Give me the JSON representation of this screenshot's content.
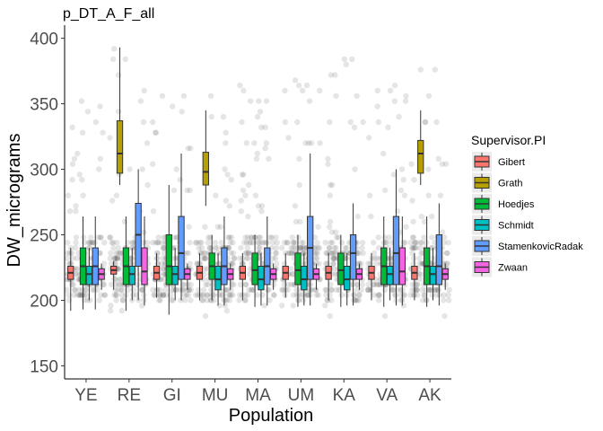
{
  "chart_data": {
    "type": "box",
    "title": "p_DT_A_F_all",
    "xlabel": "Population",
    "ylabel": "DW_micrograms",
    "ylim": [
      140,
      410
    ],
    "yticks": [
      150,
      200,
      250,
      300,
      350,
      400
    ],
    "categories": [
      "YE",
      "RE",
      "GI",
      "MU",
      "MA",
      "UM",
      "KA",
      "VA",
      "AK"
    ],
    "legend": {
      "title": "Supervisor.PI",
      "position": "right",
      "entries": [
        {
          "name": "Gibert",
          "color": "#F8766D"
        },
        {
          "name": "Grath",
          "color": "#B79F00"
        },
        {
          "name": "Hoedjes",
          "color": "#00BA38"
        },
        {
          "name": "Schmidt",
          "color": "#00BFC4"
        },
        {
          "name": "StamenkovicRadak",
          "color": "#619CFF"
        },
        {
          "name": "Zwaan",
          "color": "#F564E3"
        }
      ]
    },
    "series": [
      {
        "name": "Gibert",
        "color": "#F8766D",
        "boxes": [
          {
            "category": "YE",
            "min": 192,
            "q1": 216,
            "median": 221,
            "q3": 226,
            "max": 240
          },
          {
            "category": "RE",
            "min": 208,
            "q1": 220,
            "median": 223,
            "q3": 226,
            "max": 230
          },
          {
            "category": "GI",
            "min": 202,
            "q1": 216,
            "median": 221,
            "q3": 226,
            "max": 236
          },
          {
            "category": "MU",
            "min": 200,
            "q1": 216,
            "median": 221,
            "q3": 226,
            "max": 236
          },
          {
            "category": "MA",
            "min": 200,
            "q1": 216,
            "median": 221,
            "q3": 226,
            "max": 236
          },
          {
            "category": "UM",
            "min": 202,
            "q1": 216,
            "median": 221,
            "q3": 226,
            "max": 236
          },
          {
            "category": "KA",
            "min": 200,
            "q1": 216,
            "median": 221,
            "q3": 226,
            "max": 236
          },
          {
            "category": "VA",
            "min": 200,
            "q1": 216,
            "median": 221,
            "q3": 226,
            "max": 236
          },
          {
            "category": "AK",
            "min": 200,
            "q1": 216,
            "median": 221,
            "q3": 226,
            "max": 236
          }
        ]
      },
      {
        "name": "Grath",
        "color": "#B79F00",
        "boxes": [
          {
            "category": "RE",
            "min": 288,
            "q1": 297,
            "median": 312,
            "q3": 337,
            "max": 393
          },
          {
            "category": "MU",
            "min": 272,
            "q1": 288,
            "median": 298,
            "q3": 313,
            "max": 345
          },
          {
            "category": "AK",
            "min": 288,
            "q1": 297,
            "median": 312,
            "q3": 322,
            "max": 345
          }
        ]
      },
      {
        "name": "Hoedjes",
        "color": "#00BA38",
        "boxes": [
          {
            "category": "YE",
            "min": 193,
            "q1": 212,
            "median": 226,
            "q3": 240,
            "max": 264
          },
          {
            "category": "RE",
            "min": 192,
            "q1": 212,
            "median": 226,
            "q3": 240,
            "max": 264
          },
          {
            "category": "GI",
            "min": 189,
            "q1": 212,
            "median": 226,
            "q3": 250,
            "max": 288
          },
          {
            "category": "MU",
            "min": 200,
            "q1": 216,
            "median": 226,
            "q3": 236,
            "max": 250
          },
          {
            "category": "MA",
            "min": 195,
            "q1": 212,
            "median": 223,
            "q3": 236,
            "max": 250
          },
          {
            "category": "UM",
            "min": 195,
            "q1": 212,
            "median": 223,
            "q3": 236,
            "max": 250
          },
          {
            "category": "KA",
            "min": 195,
            "q1": 212,
            "median": 223,
            "q3": 236,
            "max": 250
          },
          {
            "category": "VA",
            "min": 195,
            "q1": 212,
            "median": 226,
            "q3": 240,
            "max": 264
          },
          {
            "category": "AK",
            "min": 195,
            "q1": 212,
            "median": 226,
            "q3": 240,
            "max": 264
          }
        ]
      },
      {
        "name": "Schmidt",
        "color": "#00BFC4",
        "boxes": [
          {
            "category": "YE",
            "min": 200,
            "q1": 212,
            "median": 220,
            "q3": 226,
            "max": 240
          },
          {
            "category": "RE",
            "min": 200,
            "q1": 212,
            "median": 220,
            "q3": 226,
            "max": 240
          },
          {
            "category": "GI",
            "min": 200,
            "q1": 212,
            "median": 220,
            "q3": 226,
            "max": 240
          },
          {
            "category": "MU",
            "min": 196,
            "q1": 208,
            "median": 216,
            "q3": 226,
            "max": 236
          },
          {
            "category": "MA",
            "min": 196,
            "q1": 208,
            "median": 216,
            "q3": 226,
            "max": 236
          },
          {
            "category": "UM",
            "min": 196,
            "q1": 208,
            "median": 216,
            "q3": 226,
            "max": 236
          },
          {
            "category": "KA",
            "min": 196,
            "q1": 208,
            "median": 216,
            "q3": 226,
            "max": 236
          },
          {
            "category": "VA",
            "min": 200,
            "q1": 212,
            "median": 220,
            "q3": 226,
            "max": 240
          },
          {
            "category": "AK",
            "min": 200,
            "q1": 212,
            "median": 220,
            "q3": 226,
            "max": 240
          }
        ]
      },
      {
        "name": "StamenkovicRadak",
        "color": "#619CFF",
        "boxes": [
          {
            "category": "YE",
            "min": 193,
            "q1": 212,
            "median": 226,
            "q3": 240,
            "max": 264
          },
          {
            "category": "RE",
            "min": 200,
            "q1": 226,
            "median": 250,
            "q3": 274,
            "max": 300
          },
          {
            "category": "GI",
            "min": 200,
            "q1": 216,
            "median": 236,
            "q3": 264,
            "max": 312
          },
          {
            "category": "MU",
            "min": 196,
            "q1": 212,
            "median": 226,
            "q3": 240,
            "max": 264
          },
          {
            "category": "MA",
            "min": 196,
            "q1": 212,
            "median": 226,
            "q3": 240,
            "max": 264
          },
          {
            "category": "UM",
            "min": 196,
            "q1": 216,
            "median": 240,
            "q3": 264,
            "max": 312
          },
          {
            "category": "KA",
            "min": 196,
            "q1": 216,
            "median": 236,
            "q3": 250,
            "max": 274
          },
          {
            "category": "VA",
            "min": 196,
            "q1": 212,
            "median": 236,
            "q3": 264,
            "max": 300
          },
          {
            "category": "AK",
            "min": 196,
            "q1": 212,
            "median": 226,
            "q3": 250,
            "max": 274
          }
        ]
      },
      {
        "name": "Zwaan",
        "color": "#F564E3",
        "boxes": [
          {
            "category": "YE",
            "min": 208,
            "q1": 216,
            "median": 220,
            "q3": 224,
            "max": 228
          },
          {
            "category": "RE",
            "min": 196,
            "q1": 212,
            "median": 222,
            "q3": 240,
            "max": 264
          },
          {
            "category": "GI",
            "min": 208,
            "q1": 216,
            "median": 220,
            "q3": 224,
            "max": 228
          },
          {
            "category": "MU",
            "min": 208,
            "q1": 216,
            "median": 220,
            "q3": 224,
            "max": 228
          },
          {
            "category": "MA",
            "min": 208,
            "q1": 216,
            "median": 220,
            "q3": 224,
            "max": 228
          },
          {
            "category": "UM",
            "min": 208,
            "q1": 216,
            "median": 220,
            "q3": 224,
            "max": 228
          },
          {
            "category": "KA",
            "min": 208,
            "q1": 216,
            "median": 220,
            "q3": 224,
            "max": 228
          },
          {
            "category": "VA",
            "min": 196,
            "q1": 212,
            "median": 222,
            "q3": 240,
            "max": 264
          },
          {
            "category": "AK",
            "min": 208,
            "q1": 216,
            "median": 220,
            "q3": 224,
            "max": 228
          }
        ]
      }
    ],
    "points": {
      "color": "#000000",
      "description": "jittered raw observations overlaid on boxes, semi-transparent",
      "per_category_range": {
        "YE": [
          192,
          360
        ],
        "RE": [
          190,
          392
        ],
        "GI": [
          190,
          360
        ],
        "MU": [
          186,
          360
        ],
        "MA": [
          186,
          368
        ],
        "UM": [
          186,
          384
        ],
        "KA": [
          186,
          384
        ],
        "VA": [
          186,
          368
        ],
        "AK": [
          186,
          384
        ]
      }
    }
  }
}
